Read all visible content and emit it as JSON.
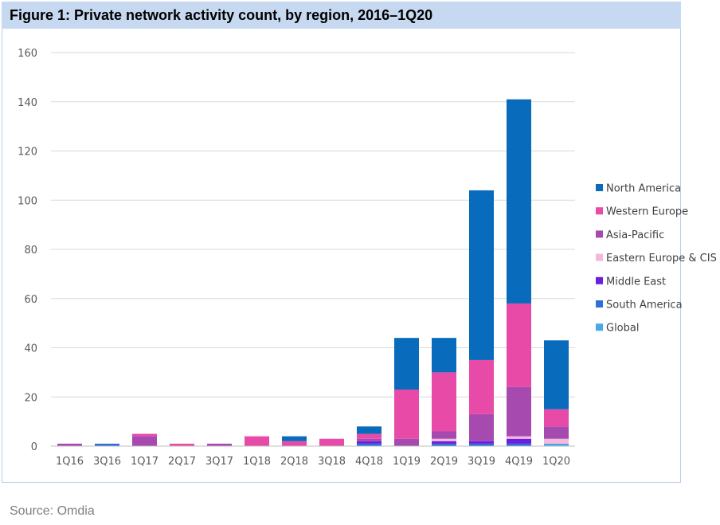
{
  "figure": {
    "title": "Figure 1: Private network activity count, by region, 2016–1Q20",
    "source": "Source: Omdia"
  },
  "chart_data": {
    "type": "bar",
    "stacked": true,
    "title": "Figure 1: Private network activity count, by region, 2016–1Q20",
    "xlabel": "",
    "ylabel": "",
    "ylim": [
      0,
      160
    ],
    "yticks": [
      0,
      20,
      40,
      60,
      80,
      100,
      120,
      140,
      160
    ],
    "grid": true,
    "legend_position": "right",
    "categories": [
      "1Q16",
      "3Q16",
      "1Q17",
      "2Q17",
      "3Q17",
      "1Q18",
      "2Q18",
      "3Q18",
      "4Q18",
      "1Q19",
      "2Q19",
      "3Q19",
      "4Q19",
      "1Q20"
    ],
    "series": [
      {
        "name": "Global",
        "color": "#4aa8e8",
        "values": [
          0,
          0,
          0,
          0,
          0,
          0,
          0,
          0,
          0,
          0,
          0,
          0,
          0,
          1
        ]
      },
      {
        "name": "South America",
        "color": "#2f6fd6",
        "values": [
          0,
          1,
          0,
          0,
          0,
          0,
          0,
          0,
          1,
          0,
          1,
          1,
          1,
          0
        ]
      },
      {
        "name": "Middle East",
        "color": "#6a1fe0",
        "values": [
          0,
          0,
          0,
          0,
          0,
          0,
          0,
          0,
          1,
          0,
          1,
          1,
          2,
          0
        ]
      },
      {
        "name": "Eastern Europe & CIS",
        "color": "#f3b8dc",
        "values": [
          0,
          0,
          0,
          0,
          0,
          0,
          0,
          0,
          0,
          0,
          1,
          0,
          1,
          2
        ]
      },
      {
        "name": "Asia-Pacific",
        "color": "#a64ab0",
        "values": [
          1,
          0,
          4,
          0,
          1,
          0,
          0,
          0,
          1,
          3,
          3,
          11,
          20,
          5
        ]
      },
      {
        "name": "Western Europe",
        "color": "#e84aa8",
        "values": [
          0,
          0,
          1,
          1,
          0,
          4,
          2,
          3,
          2,
          20,
          24,
          22,
          34,
          7
        ]
      },
      {
        "name": "North America",
        "color": "#086bbc",
        "values": [
          0,
          0,
          0,
          0,
          0,
          0,
          2,
          0,
          3,
          21,
          14,
          69,
          83,
          28
        ]
      }
    ],
    "legend_order": [
      "North America",
      "Western Europe",
      "Asia-Pacific",
      "Eastern Europe & CIS",
      "Middle East",
      "South America",
      "Global"
    ]
  }
}
